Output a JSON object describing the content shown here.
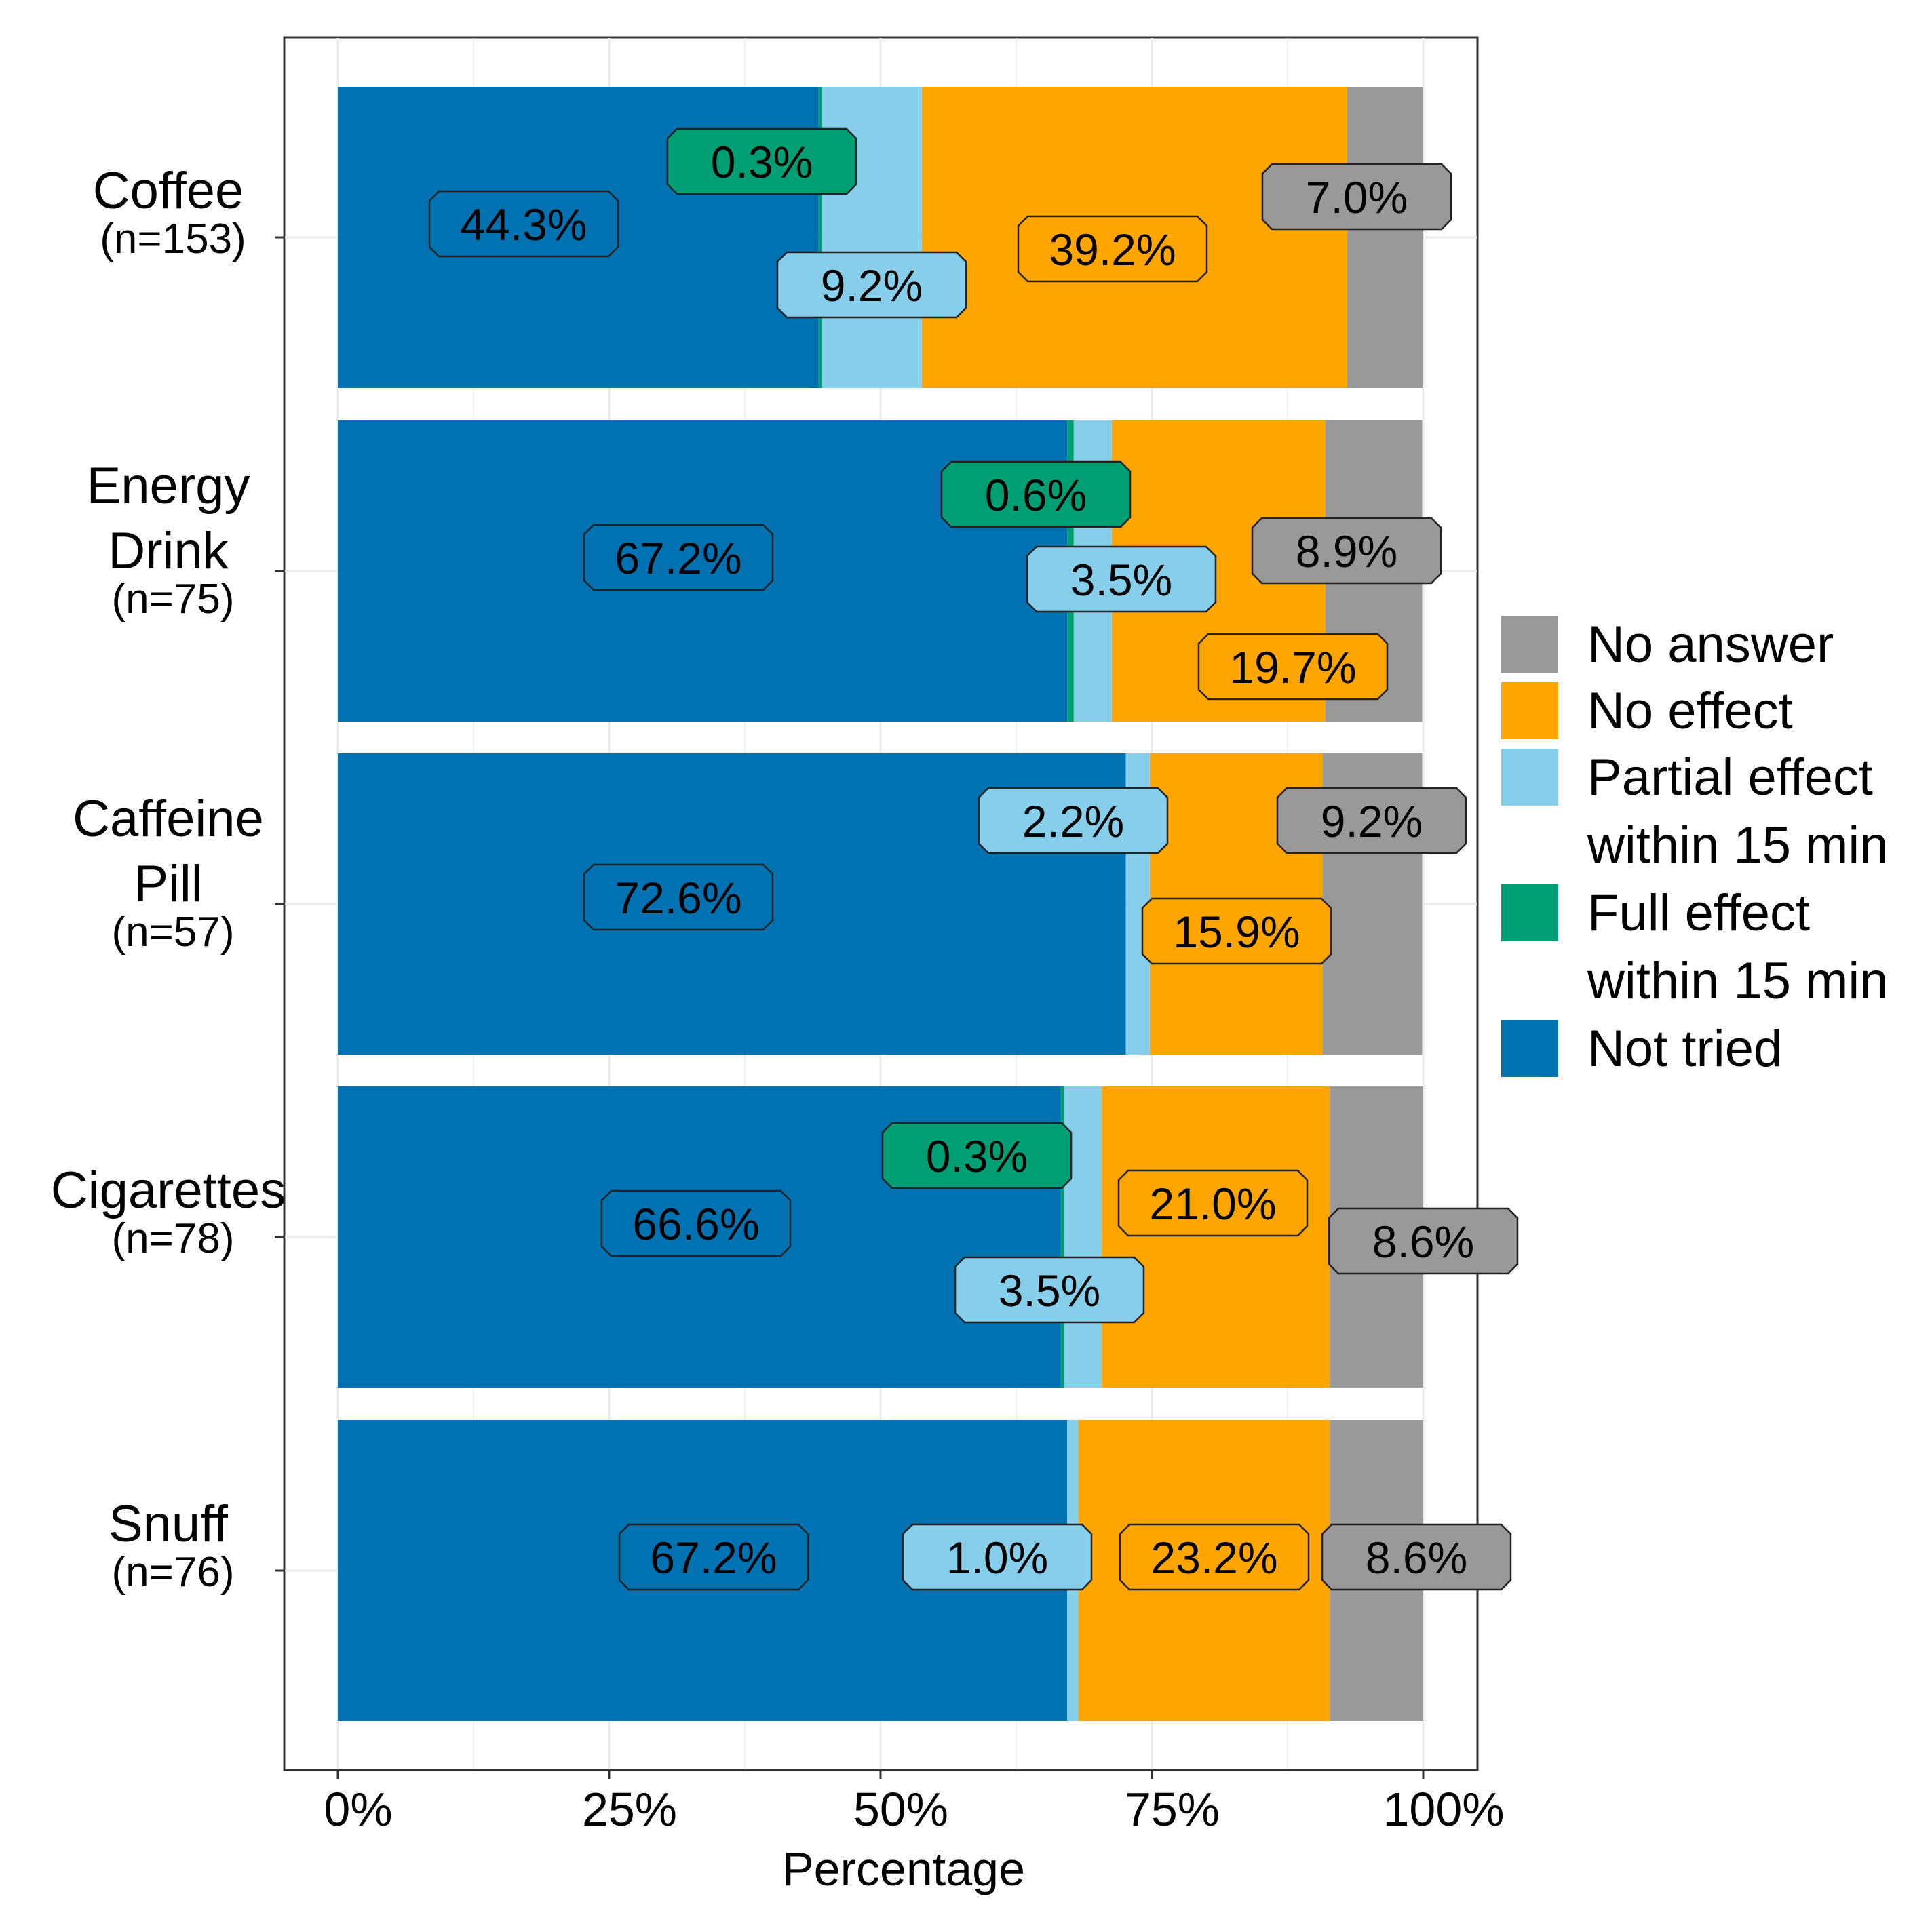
{
  "chart_data": {
    "type": "bar",
    "orientation": "horizontal",
    "stacked": true,
    "title": "",
    "xlabel": "Percentage",
    "ylabel": "",
    "xlim": [
      0,
      100
    ],
    "x_ticks": [
      "0%",
      "25%",
      "50%",
      "75%",
      "100%"
    ],
    "categories": [
      {
        "name": "Coffee",
        "n": "(n=153)"
      },
      {
        "name": "Energy Drink",
        "n": "(n=75)"
      },
      {
        "name": "Caffeine Pill",
        "n": "(n=57)"
      },
      {
        "name": "Cigarettes",
        "n": "(n=78)"
      },
      {
        "name": "Snuff",
        "n": "(n=76)"
      }
    ],
    "series": [
      {
        "name": "Not tried",
        "color": "#0072B2",
        "values": [
          44.3,
          67.2,
          72.6,
          66.6,
          67.2
        ],
        "labels": [
          "44.3%",
          "67.2%",
          "72.6%",
          "66.6%",
          "67.2%"
        ]
      },
      {
        "name": "Full effect within 15 min",
        "color": "#009E73",
        "values": [
          0.3,
          0.6,
          0.0,
          0.3,
          0.0
        ],
        "labels": [
          "0.3%",
          "0.6%",
          null,
          "0.3%",
          null
        ]
      },
      {
        "name": "Partial effect within 15 min",
        "color": "#87CEEB",
        "values": [
          9.2,
          3.5,
          2.2,
          3.5,
          1.0
        ],
        "labels": [
          "9.2%",
          "3.5%",
          "2.2%",
          "3.5%",
          "1.0%"
        ]
      },
      {
        "name": "No effect",
        "color": "#FFA500",
        "values": [
          39.2,
          19.7,
          15.9,
          21.0,
          23.2
        ],
        "labels": [
          "39.2%",
          "19.7%",
          "15.9%",
          "21.0%",
          "23.2%"
        ]
      },
      {
        "name": "No answer",
        "color": "#999999",
        "values": [
          7.0,
          8.9,
          9.2,
          8.6,
          8.6
        ],
        "labels": [
          "7.0%",
          "8.9%",
          "9.2%",
          "8.6%",
          "8.6%"
        ]
      }
    ],
    "legend": {
      "placement": "right",
      "entries": [
        {
          "lines": [
            "No answer"
          ],
          "color": "#999999"
        },
        {
          "lines": [
            "No effect"
          ],
          "color": "#FFA500"
        },
        {
          "lines": [
            "Partial effect",
            "within 15 min"
          ],
          "color": "#87CEEB"
        },
        {
          "lines": [
            "Full effect",
            "within 15 min"
          ],
          "color": "#009E73"
        },
        {
          "lines": [
            "Not tried"
          ],
          "color": "#0072B2"
        }
      ]
    },
    "grid": true
  }
}
